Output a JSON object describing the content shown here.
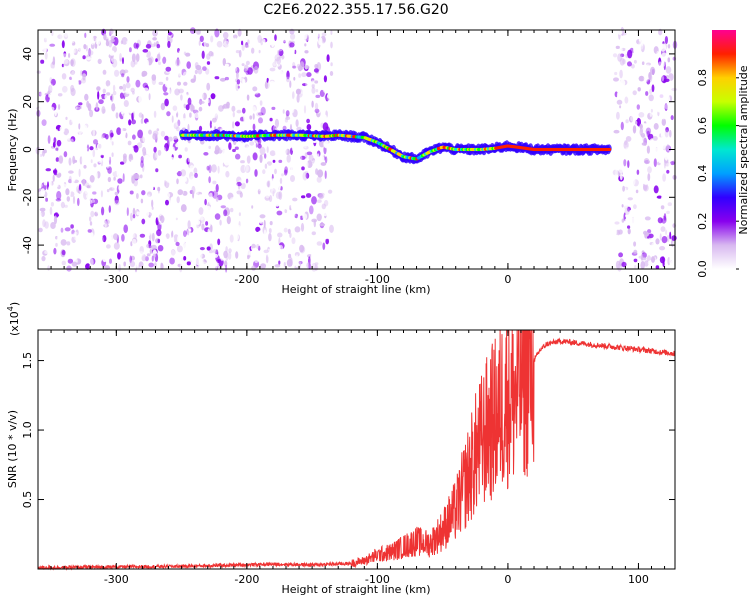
{
  "title": "C2E6.2022.355.17.56.G20",
  "chart_data": [
    {
      "type": "heatmap",
      "xlabel": "Height of straight line (km)",
      "ylabel": "Frequency (Hz)",
      "xlim": [
        -360,
        128
      ],
      "ylim": [
        -50,
        50
      ],
      "xticks": [
        -300,
        -200,
        -100,
        0,
        100
      ],
      "yticks": [
        -40,
        -20,
        0,
        20,
        40
      ],
      "colorbar": {
        "label": "Normalized spectral amplitude",
        "range": [
          0,
          1
        ],
        "ticks": [
          "0.0",
          "0.2",
          "0.4",
          "0.6",
          "0.8"
        ],
        "colors": [
          "#ffffff",
          "#d8b8f0",
          "#8800ee",
          "#3000ff",
          "#00a0ff",
          "#00e8d0",
          "#00ff00",
          "#c8ff00",
          "#ffd000",
          "#ff2000",
          "#ff0090"
        ]
      },
      "grid": false,
      "ridge": {
        "x": [
          -250,
          -220,
          -200,
          -180,
          -160,
          -140,
          -130,
          -120,
          -110,
          -100,
          -90,
          -80,
          -70,
          -60,
          -50,
          -40,
          -30,
          -20,
          -10,
          0,
          20,
          40,
          60,
          78
        ],
        "y": [
          6,
          6,
          5.5,
          6,
          6,
          5.5,
          6,
          5.5,
          5,
          3,
          0,
          -3,
          -4,
          -1,
          1,
          0,
          0,
          0,
          0.5,
          1.5,
          0,
          0,
          0,
          0
        ]
      },
      "noise_regions": [
        [
          -360,
          -135
        ],
        [
          82,
          128
        ]
      ]
    },
    {
      "type": "line",
      "xlabel": "Height of straight line (km)",
      "ylabel": "SNR (10 * v/v)",
      "scale_label": "(x10",
      "scale_exp": "4",
      "scale_close": ")",
      "xlim": [
        -360,
        128
      ],
      "ylim": [
        0,
        1.72
      ],
      "xticks": [
        -300,
        -200,
        -100,
        0,
        100
      ],
      "yticks": [
        0.5,
        1.0,
        1.5
      ],
      "color": "#ee3333",
      "grid": false,
      "series": [
        {
          "x": [
            -360,
            -300,
            -250,
            -200,
            -180,
            -150,
            -120,
            -110,
            -100,
            -90,
            -80,
            -70,
            -60,
            -50,
            -40,
            -30,
            -25,
            -20,
            -15,
            -10,
            -5,
            0,
            5,
            10,
            15,
            20,
            25,
            30,
            40,
            60,
            80,
            100,
            128
          ],
          "y": [
            0.01,
            0.015,
            0.02,
            0.03,
            0.035,
            0.03,
            0.04,
            0.06,
            0.1,
            0.12,
            0.16,
            0.2,
            0.18,
            0.28,
            0.42,
            0.68,
            0.82,
            0.92,
            1.02,
            1.08,
            1.18,
            1.26,
            1.24,
            1.38,
            1.42,
            1.5,
            1.58,
            1.62,
            1.64,
            1.62,
            1.6,
            1.58,
            1.55
          ]
        }
      ]
    }
  ]
}
